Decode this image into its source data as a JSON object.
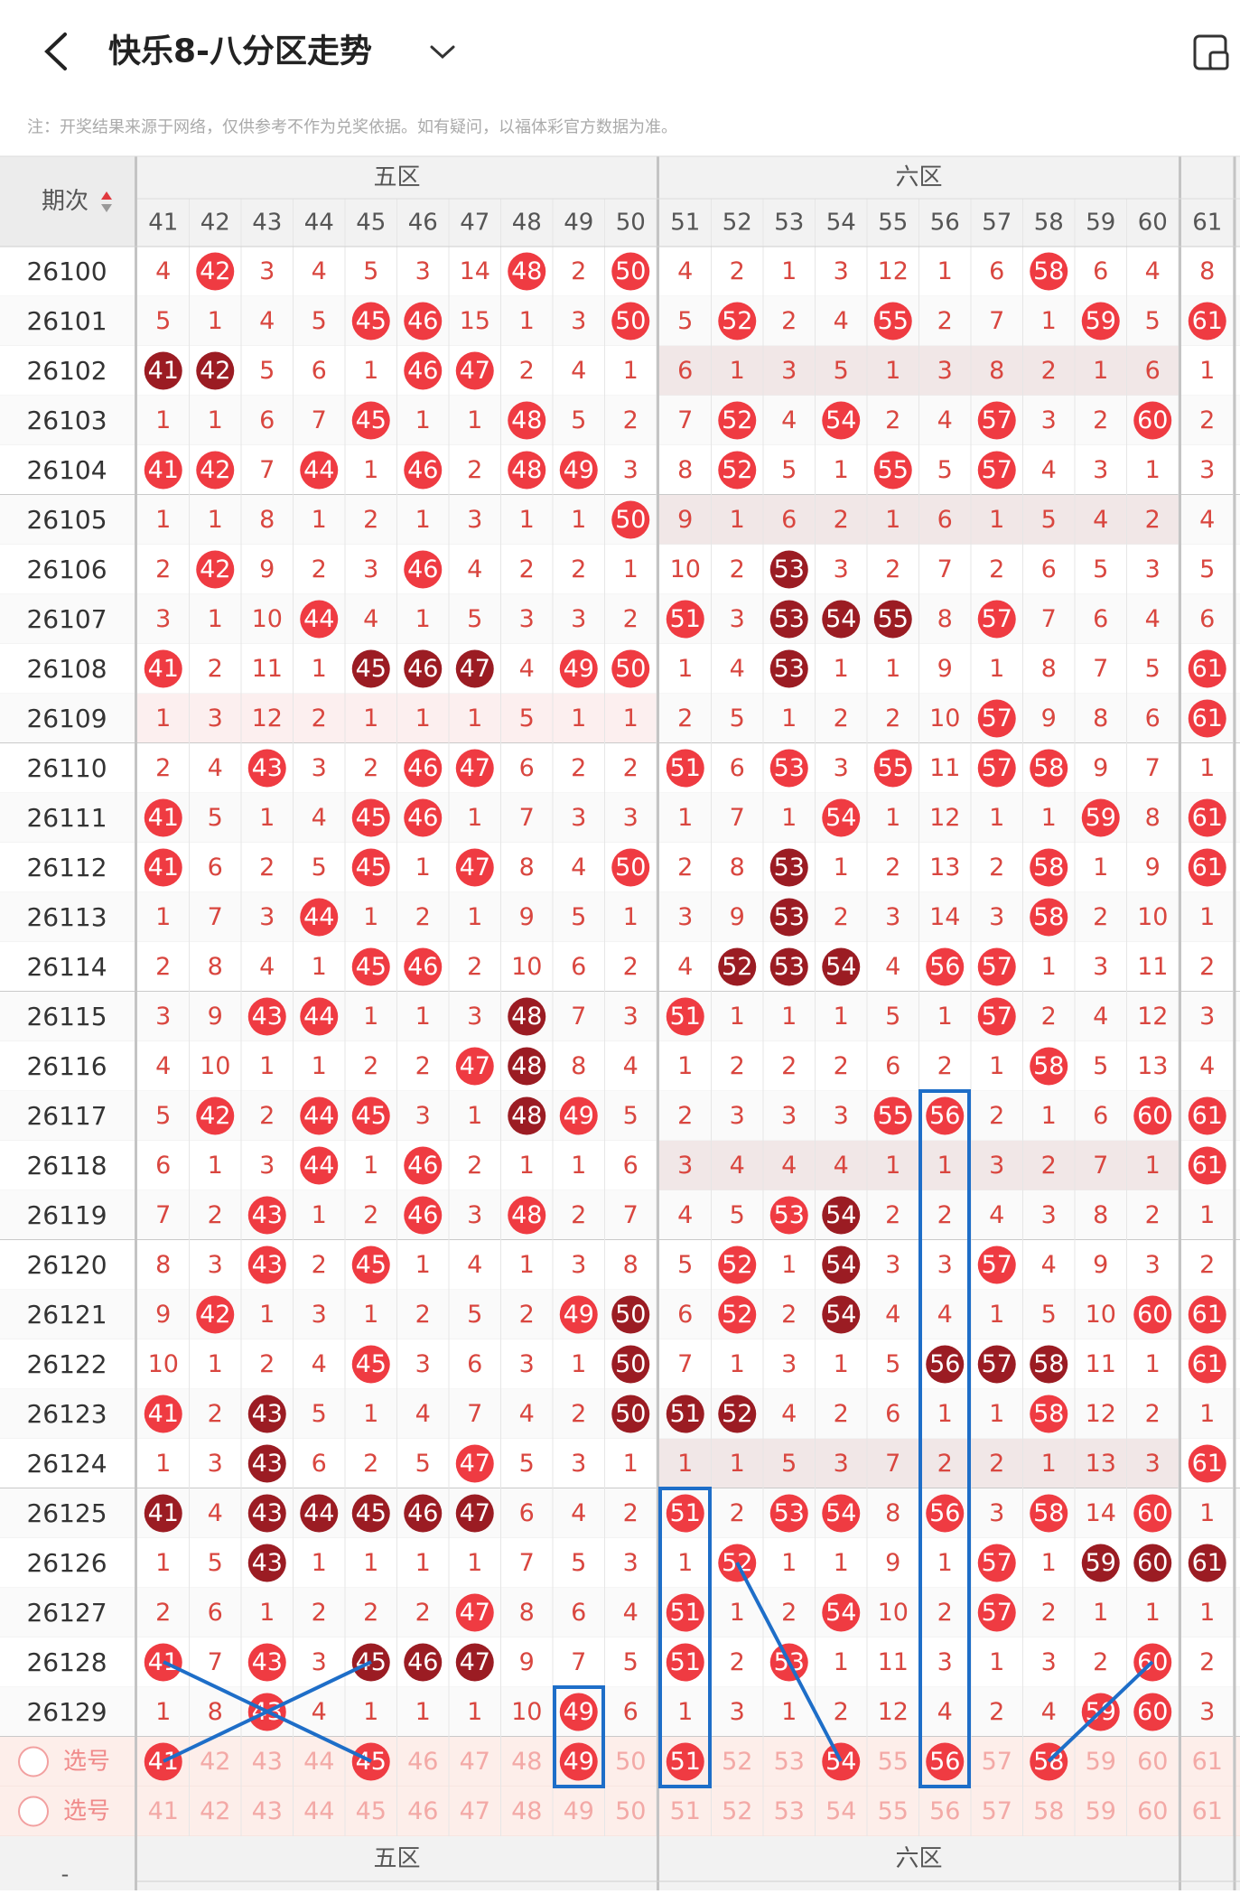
{
  "header": {
    "title": "快乐8-八分区走势",
    "note": "注：开奖结果来源于网络，仅供参考不作为兑奖依据。如有疑问，以福体彩官方数据为准。"
  },
  "table": {
    "period_label": "期次",
    "footer_label": "-",
    "zones": [
      {
        "name": "五区",
        "columns": [
          41,
          42,
          43,
          44,
          45,
          46,
          47,
          48,
          49,
          50
        ]
      },
      {
        "name": "六区",
        "columns": [
          51,
          52,
          53,
          54,
          55,
          56,
          57,
          58,
          59,
          60
        ]
      },
      {
        "columns": [
          61
        ]
      }
    ],
    "rows": [
      {
        "period": "26100",
        "cells": [
          4,
          42,
          3,
          4,
          5,
          3,
          14,
          48,
          2,
          50,
          4,
          2,
          1,
          3,
          12,
          1,
          6,
          58,
          6,
          4,
          8
        ],
        "hits": ".r.....r.r.......r...."
      },
      {
        "period": "26101",
        "cells": [
          5,
          1,
          4,
          5,
          45,
          46,
          15,
          1,
          3,
          50,
          5,
          52,
          2,
          4,
          55,
          2,
          7,
          1,
          59,
          5,
          61
        ],
        "hits": "....rr...r.r..r...r.r"
      },
      {
        "period": "26102",
        "cells": [
          41,
          42,
          5,
          6,
          1,
          46,
          47,
          2,
          4,
          1,
          6,
          1,
          3,
          5,
          1,
          3,
          8,
          2,
          1,
          6,
          1
        ],
        "hits": "dd...rr...........",
        "shade": [
          1
        ]
      },
      {
        "period": "26103",
        "cells": [
          1,
          1,
          6,
          7,
          45,
          1,
          1,
          48,
          5,
          2,
          7,
          52,
          4,
          54,
          2,
          4,
          57,
          3,
          2,
          60,
          2
        ],
        "hits": "....r..r...r.r..r..r."
      },
      {
        "period": "26104",
        "cells": [
          41,
          42,
          7,
          44,
          1,
          46,
          2,
          48,
          49,
          3,
          8,
          52,
          5,
          1,
          55,
          5,
          57,
          4,
          3,
          1,
          3
        ],
        "hits": "rr.r.r.rr..r..r.r...."
      },
      {
        "period": "26105",
        "cells": [
          1,
          1,
          8,
          1,
          2,
          1,
          3,
          1,
          1,
          50,
          9,
          1,
          6,
          2,
          1,
          6,
          1,
          5,
          4,
          2,
          4
        ],
        "hits": ".........r...........",
        "shade": [
          1
        ]
      },
      {
        "period": "26106",
        "cells": [
          2,
          42,
          9,
          2,
          3,
          46,
          4,
          2,
          2,
          1,
          10,
          2,
          53,
          3,
          2,
          7,
          2,
          6,
          5,
          3,
          5
        ],
        "hits": ".r...r......d........"
      },
      {
        "period": "26107",
        "cells": [
          3,
          1,
          10,
          44,
          4,
          1,
          5,
          3,
          3,
          2,
          51,
          3,
          53,
          54,
          55,
          8,
          57,
          7,
          6,
          4,
          6
        ],
        "hits": "...r......r.ddd.r...."
      },
      {
        "period": "26108",
        "cells": [
          41,
          2,
          11,
          1,
          45,
          46,
          47,
          4,
          49,
          50,
          1,
          4,
          53,
          1,
          1,
          9,
          1,
          8,
          7,
          5,
          61
        ],
        "hits": "r...ddd.rr..d.......r"
      },
      {
        "period": "26109",
        "cells": [
          1,
          3,
          12,
          2,
          1,
          1,
          1,
          5,
          1,
          1,
          2,
          5,
          1,
          2,
          2,
          10,
          57,
          9,
          8,
          6,
          61
        ],
        "hits": "................r...r",
        "shade": [
          0
        ]
      },
      {
        "period": "26110",
        "cells": [
          2,
          4,
          43,
          3,
          2,
          46,
          47,
          6,
          2,
          2,
          51,
          6,
          53,
          3,
          55,
          11,
          57,
          58,
          9,
          7,
          1
        ],
        "hits": "..r..rr...r.r.r.rr..."
      },
      {
        "period": "26111",
        "cells": [
          41,
          5,
          1,
          4,
          45,
          46,
          1,
          7,
          3,
          3,
          1,
          7,
          1,
          54,
          1,
          12,
          1,
          1,
          59,
          8,
          61
        ],
        "hits": "r...rr.......r....r.r"
      },
      {
        "period": "26112",
        "cells": [
          41,
          6,
          2,
          5,
          45,
          1,
          47,
          8,
          4,
          50,
          2,
          8,
          53,
          1,
          2,
          13,
          2,
          58,
          1,
          9,
          61
        ],
        "hits": "r...r.r..r..d....r..r"
      },
      {
        "period": "26113",
        "cells": [
          1,
          7,
          3,
          44,
          1,
          2,
          1,
          9,
          5,
          1,
          3,
          9,
          53,
          2,
          3,
          14,
          3,
          58,
          2,
          10,
          1
        ],
        "hits": "...r........d....r..."
      },
      {
        "period": "26114",
        "cells": [
          2,
          8,
          4,
          1,
          45,
          46,
          2,
          10,
          6,
          2,
          4,
          52,
          53,
          54,
          4,
          56,
          57,
          1,
          3,
          11,
          2
        ],
        "hits": "....rr.....ddd.rr...."
      },
      {
        "period": "26115",
        "cells": [
          3,
          9,
          43,
          44,
          1,
          1,
          3,
          48,
          7,
          3,
          51,
          1,
          1,
          1,
          5,
          1,
          57,
          2,
          4,
          12,
          3
        ],
        "hits": "..rr...d..r.....r...."
      },
      {
        "period": "26116",
        "cells": [
          4,
          10,
          1,
          1,
          2,
          2,
          47,
          48,
          8,
          4,
          1,
          2,
          2,
          2,
          6,
          2,
          1,
          58,
          5,
          13,
          4
        ],
        "hits": "......rd.........r..."
      },
      {
        "period": "26117",
        "cells": [
          5,
          42,
          2,
          44,
          45,
          3,
          1,
          48,
          49,
          5,
          2,
          3,
          3,
          3,
          55,
          56,
          2,
          1,
          6,
          60,
          61
        ],
        "hits": ".r.rr..dr.....rr...rr"
      },
      {
        "period": "26118",
        "cells": [
          6,
          1,
          3,
          44,
          1,
          46,
          2,
          1,
          1,
          6,
          3,
          4,
          4,
          4,
          1,
          1,
          3,
          2,
          7,
          1,
          61
        ],
        "hits": "...r.r..............r",
        "shade": [
          1
        ]
      },
      {
        "period": "26119",
        "cells": [
          7,
          2,
          43,
          1,
          2,
          46,
          3,
          48,
          2,
          7,
          4,
          5,
          53,
          54,
          2,
          2,
          4,
          3,
          8,
          2,
          1
        ],
        "hits": "..r..r.r....rd......."
      },
      {
        "period": "26120",
        "cells": [
          8,
          3,
          43,
          2,
          45,
          1,
          4,
          1,
          3,
          8,
          5,
          52,
          1,
          54,
          3,
          3,
          57,
          4,
          9,
          3,
          2
        ],
        "hits": "..r.r......r.d..r...."
      },
      {
        "period": "26121",
        "cells": [
          9,
          42,
          1,
          3,
          1,
          2,
          5,
          2,
          49,
          50,
          6,
          52,
          2,
          54,
          4,
          4,
          1,
          5,
          10,
          60,
          61
        ],
        "hits": ".r......rd.r.d.....rr"
      },
      {
        "period": "26122",
        "cells": [
          10,
          1,
          2,
          4,
          45,
          3,
          6,
          3,
          1,
          50,
          7,
          1,
          3,
          1,
          5,
          56,
          57,
          58,
          11,
          1,
          61
        ],
        "hits": "....r....d.....ddd..r"
      },
      {
        "period": "26123",
        "cells": [
          41,
          2,
          43,
          5,
          1,
          4,
          7,
          4,
          2,
          50,
          51,
          52,
          4,
          2,
          6,
          1,
          1,
          58,
          12,
          2,
          1
        ],
        "hits": "r.d......ddd.....r..."
      },
      {
        "period": "26124",
        "cells": [
          1,
          3,
          43,
          6,
          2,
          5,
          47,
          5,
          3,
          1,
          1,
          1,
          5,
          3,
          7,
          2,
          2,
          1,
          13,
          3,
          61
        ],
        "hits": "..d...r.............r",
        "shade": [
          1
        ]
      },
      {
        "period": "26125",
        "cells": [
          41,
          4,
          43,
          44,
          45,
          46,
          47,
          6,
          4,
          2,
          51,
          2,
          53,
          54,
          8,
          56,
          3,
          58,
          14,
          60,
          1
        ],
        "hits": "d.ddddd...r.rr.r.r.r."
      },
      {
        "period": "26126",
        "cells": [
          1,
          5,
          43,
          1,
          1,
          1,
          1,
          7,
          5,
          3,
          1,
          52,
          1,
          1,
          9,
          1,
          57,
          1,
          59,
          60,
          61
        ],
        "hits": "..d........r....r.ddd"
      },
      {
        "period": "26127",
        "cells": [
          2,
          6,
          1,
          2,
          2,
          2,
          47,
          8,
          6,
          4,
          51,
          1,
          2,
          54,
          10,
          2,
          57,
          2,
          1,
          1,
          1
        ],
        "hits": "......r...r..r..r...."
      },
      {
        "period": "26128",
        "cells": [
          41,
          7,
          43,
          3,
          45,
          46,
          47,
          9,
          7,
          5,
          51,
          2,
          53,
          1,
          11,
          3,
          1,
          3,
          2,
          60,
          2
        ],
        "hits": "r.r.ddd...r.r......r."
      },
      {
        "period": "26129",
        "cells": [
          1,
          8,
          43,
          4,
          1,
          1,
          1,
          10,
          49,
          6,
          1,
          3,
          1,
          2,
          12,
          4,
          2,
          4,
          59,
          60,
          3
        ],
        "hits": "..r.....r.........rr."
      }
    ],
    "select_rows": [
      {
        "label": "选号",
        "picked": [
          41,
          45,
          49,
          51,
          54,
          56,
          58
        ]
      },
      {
        "label": "选号",
        "picked": []
      }
    ]
  }
}
